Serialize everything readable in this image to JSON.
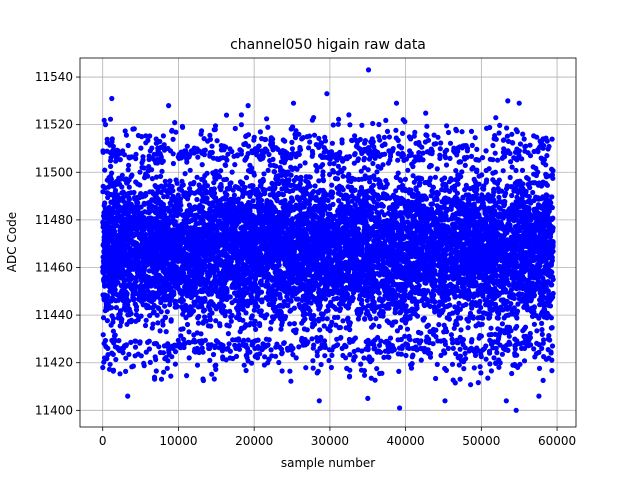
{
  "chart_data": {
    "type": "scatter",
    "title": "channel050 higain raw data",
    "xlabel": "sample number",
    "ylabel": "ADC Code",
    "xlim": [
      -3000,
      62500
    ],
    "ylim": [
      11393,
      11548
    ],
    "xticks": [
      0,
      10000,
      20000,
      30000,
      40000,
      50000,
      60000
    ],
    "yticks": [
      11400,
      11420,
      11440,
      11460,
      11480,
      11500,
      11520,
      11540
    ],
    "grid": true,
    "marker_color": "#0000ff",
    "series": [
      {
        "n_samples": 59500,
        "x_range": [
          0,
          59500
        ],
        "dense_band": [
          11430,
          11505
        ],
        "outliers": [
          {
            "x": 1200,
            "y": 11531
          },
          {
            "x": 3300,
            "y": 11406
          },
          {
            "x": 8700,
            "y": 11528
          },
          {
            "x": 19200,
            "y": 11528
          },
          {
            "x": 25200,
            "y": 11529
          },
          {
            "x": 28600,
            "y": 11404
          },
          {
            "x": 29600,
            "y": 11533
          },
          {
            "x": 35100,
            "y": 11543
          },
          {
            "x": 35000,
            "y": 11405
          },
          {
            "x": 38800,
            "y": 11529
          },
          {
            "x": 39200,
            "y": 11401
          },
          {
            "x": 45200,
            "y": 11404
          },
          {
            "x": 53500,
            "y": 11530
          },
          {
            "x": 53300,
            "y": 11404
          },
          {
            "x": 54600,
            "y": 11400
          },
          {
            "x": 55000,
            "y": 11529
          },
          {
            "x": 57600,
            "y": 11406
          }
        ]
      }
    ]
  }
}
